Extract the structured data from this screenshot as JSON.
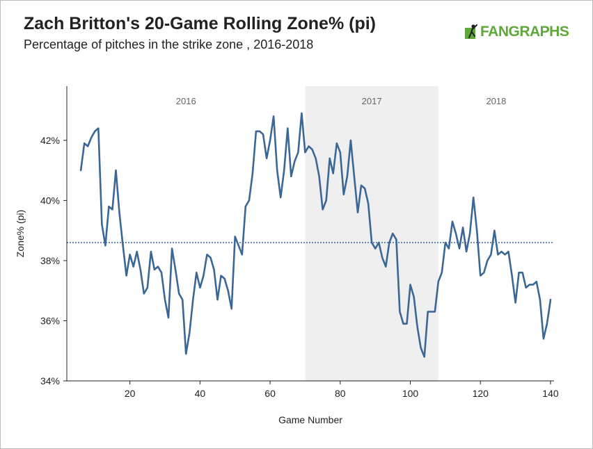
{
  "header": {
    "title": "Zach Britton's 20-Game Rolling Zone% (pi)",
    "subtitle": "Percentage of pitches in the strike zone , 2016-2018",
    "logo_text": "FANGRAPHS",
    "logo_icon": "player-silhouette-icon"
  },
  "colors": {
    "line": "#3a6796",
    "avg_line": "#3a6796",
    "shade": "#efefef",
    "brand": "#5fa83a"
  },
  "chart_data": {
    "type": "line",
    "title": "Zach Britton's 20-Game Rolling Zone% (pi)",
    "subtitle": "Percentage of pitches in the strike zone , 2016-2018",
    "xlabel": "Game Number",
    "ylabel": "Zone% (pi)",
    "xlim": [
      2,
      141
    ],
    "ylim": [
      34,
      43.8
    ],
    "xticks": [
      20,
      40,
      60,
      80,
      100,
      120,
      140
    ],
    "yticks": [
      34,
      36,
      38,
      40,
      42
    ],
    "ytick_labels": [
      "34%",
      "36%",
      "38%",
      "40%",
      "42%"
    ],
    "average": 38.6,
    "seasons": [
      {
        "label": "2016",
        "start": 2,
        "end": 70,
        "shaded": false
      },
      {
        "label": "2017",
        "start": 70,
        "end": 108,
        "shaded": true
      },
      {
        "label": "2018",
        "start": 108,
        "end": 141,
        "shaded": false
      }
    ],
    "x": [
      6,
      7,
      8,
      9,
      10,
      11,
      12,
      13,
      14,
      15,
      16,
      17,
      18,
      19,
      20,
      21,
      22,
      23,
      24,
      25,
      26,
      27,
      28,
      29,
      30,
      31,
      32,
      33,
      34,
      35,
      36,
      37,
      38,
      39,
      40,
      41,
      42,
      43,
      44,
      45,
      46,
      47,
      48,
      49,
      50,
      51,
      52,
      53,
      54,
      55,
      56,
      57,
      58,
      59,
      60,
      61,
      62,
      63,
      64,
      65,
      66,
      67,
      68,
      69,
      70,
      71,
      72,
      73,
      74,
      75,
      76,
      77,
      78,
      79,
      80,
      81,
      82,
      83,
      84,
      85,
      86,
      87,
      88,
      89,
      90,
      91,
      92,
      93,
      94,
      95,
      96,
      97,
      98,
      99,
      100,
      101,
      102,
      103,
      104,
      105,
      106,
      107,
      108,
      109,
      110,
      111,
      112,
      113,
      114,
      115,
      116,
      117,
      118,
      119,
      120,
      121,
      122,
      123,
      124,
      125,
      126,
      127,
      128,
      129,
      130,
      131,
      132,
      133,
      134,
      135,
      136,
      137,
      138,
      139,
      140
    ],
    "y": [
      41.0,
      41.9,
      41.8,
      42.1,
      42.3,
      42.4,
      39.2,
      38.5,
      39.8,
      39.7,
      41.0,
      39.6,
      38.5,
      37.5,
      38.2,
      37.8,
      38.3,
      37.7,
      36.9,
      37.1,
      38.3,
      37.7,
      37.8,
      37.6,
      36.7,
      36.1,
      38.4,
      37.7,
      36.9,
      36.7,
      34.9,
      35.6,
      36.7,
      37.6,
      37.1,
      37.5,
      38.2,
      38.1,
      37.7,
      36.7,
      37.5,
      37.4,
      37.0,
      36.4,
      38.8,
      38.5,
      38.2,
      39.8,
      40.0,
      40.9,
      42.3,
      42.3,
      42.2,
      41.4,
      42.0,
      42.8,
      41.0,
      40.1,
      41.0,
      42.4,
      40.8,
      41.3,
      41.6,
      42.9,
      41.6,
      41.8,
      41.7,
      41.4,
      40.8,
      39.7,
      40.0,
      41.4,
      40.9,
      41.9,
      41.6,
      40.2,
      40.8,
      42.0,
      40.8,
      39.6,
      40.5,
      40.4,
      39.9,
      38.6,
      38.4,
      38.6,
      38.1,
      37.8,
      38.6,
      38.9,
      38.7,
      36.3,
      35.9,
      35.9,
      37.2,
      36.8,
      35.8,
      35.1,
      34.8,
      36.3,
      36.3,
      36.3,
      37.3,
      37.6,
      38.6,
      38.4,
      39.3,
      38.9,
      38.4,
      39.1,
      38.3,
      38.9,
      40.1,
      39.0,
      37.5,
      37.6,
      38.0,
      38.2,
      39.0,
      38.2,
      38.3,
      38.2,
      38.3,
      37.5,
      36.6,
      37.6,
      37.6,
      37.1,
      37.2,
      37.2,
      37.3,
      36.7,
      35.4,
      35.9,
      36.7
    ]
  }
}
